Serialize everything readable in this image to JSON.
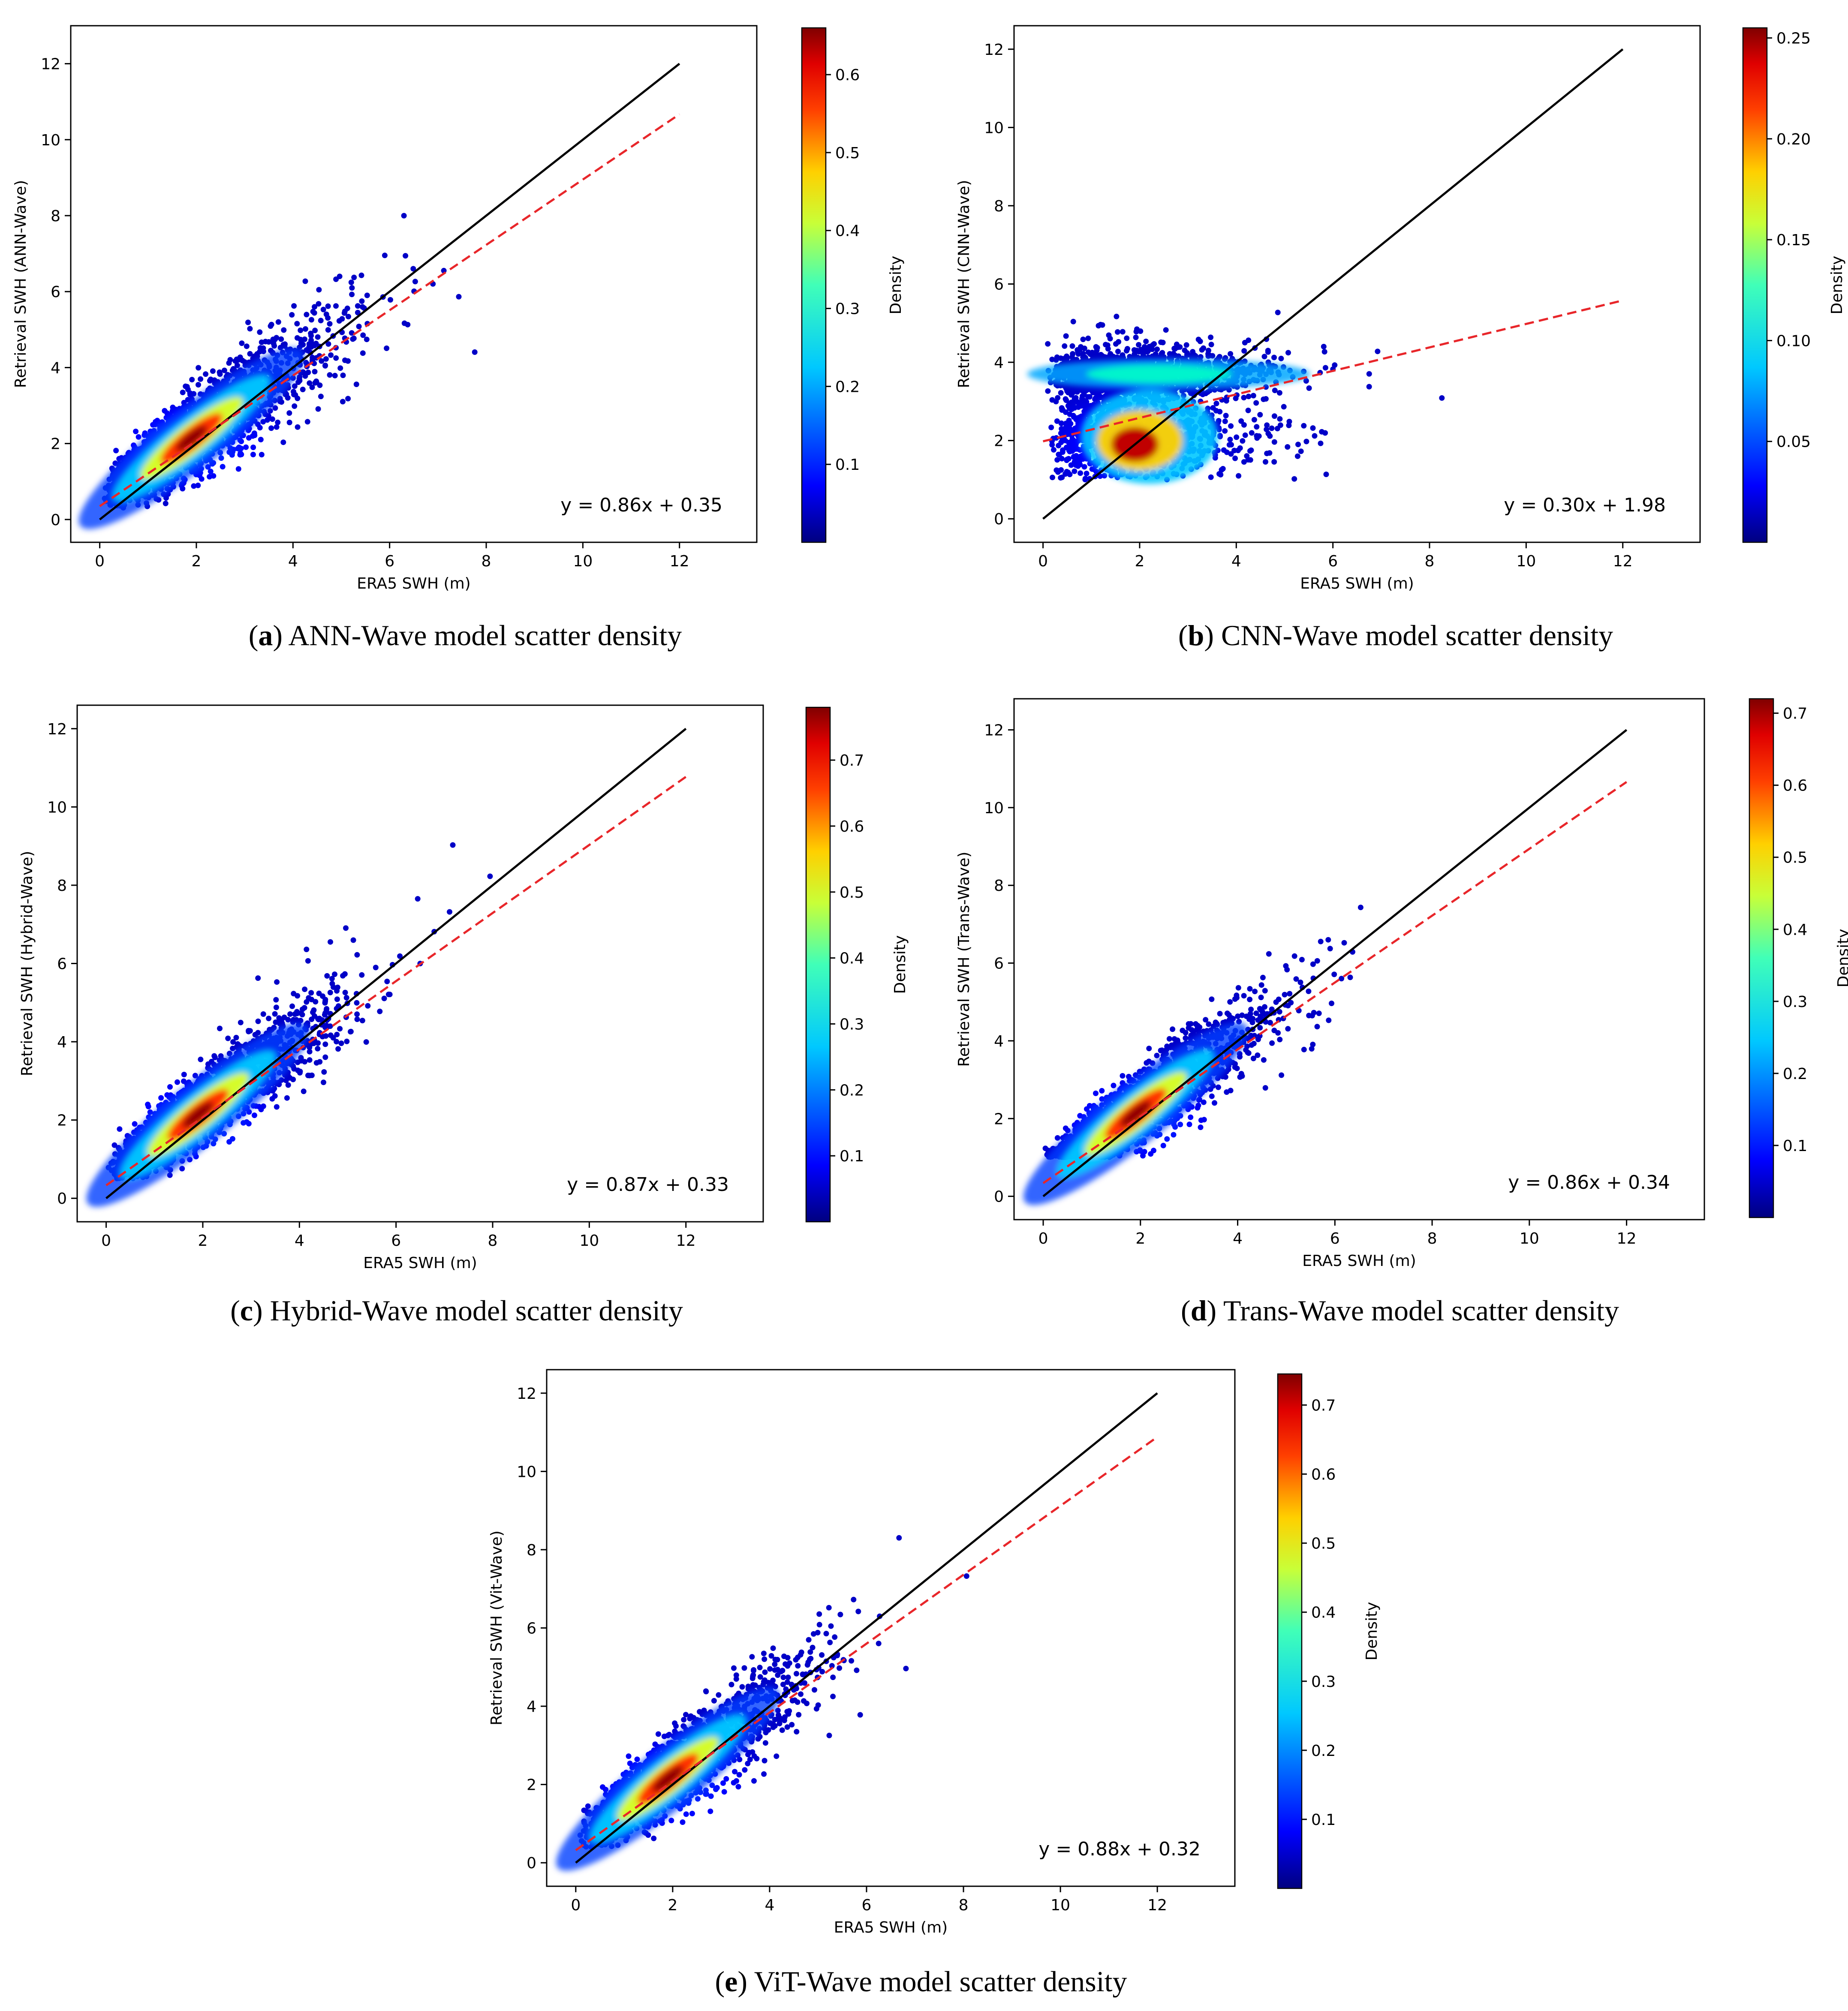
{
  "figure": {
    "panels": [
      {
        "id": "a",
        "caption_letter": "a",
        "caption_text": "ANN-Wave model scatter density",
        "equation": "y = 0.86x + 0.35",
        "slope": 0.86,
        "intercept": 0.35,
        "xlabel": "ERA5 SWH (m)",
        "ylabel": "Retrieval SWH (ANN-Wave)",
        "colorbar_label": "Density",
        "colorbar_range": [
          0.0,
          0.66
        ],
        "colorbar_ticks": [
          "0.1",
          "0.2",
          "0.3",
          "0.4",
          "0.5",
          "0.6"
        ],
        "x_ticks": [
          "0",
          "2",
          "4",
          "6",
          "8",
          "10",
          "12"
        ],
        "y_ticks": [
          "0",
          "2",
          "4",
          "6",
          "8",
          "10",
          "12"
        ],
        "xlim": [
          -0.6,
          13.6
        ],
        "ylim": [
          -0.6,
          13.0
        ],
        "mode": "diag",
        "floor": 0.3,
        "spread": 0.62
      },
      {
        "id": "b",
        "caption_letter": "b",
        "caption_text": "CNN-Wave model scatter density",
        "equation": "y = 0.30x + 1.98",
        "slope": 0.3,
        "intercept": 1.98,
        "xlabel": "ERA5 SWH (m)",
        "ylabel": "Retrieval SWH (CNN-Wave)",
        "colorbar_label": "Density",
        "colorbar_range": [
          0.0,
          0.255
        ],
        "colorbar_ticks": [
          "0.05",
          "0.10",
          "0.15",
          "0.20",
          "0.25"
        ],
        "x_ticks": [
          "0",
          "2",
          "4",
          "6",
          "8",
          "10",
          "12"
        ],
        "y_ticks": [
          "0",
          "2",
          "4",
          "6",
          "8",
          "10",
          "12"
        ],
        "xlim": [
          -0.6,
          13.6
        ],
        "ylim": [
          -0.6,
          12.6
        ],
        "mode": "cnn",
        "floor": 1.0,
        "spread": 0.5
      },
      {
        "id": "c",
        "caption_letter": "c",
        "caption_text": "Hybrid-Wave model scatter density",
        "equation": "y = 0.87x + 0.33",
        "slope": 0.87,
        "intercept": 0.33,
        "xlabel": "ERA5 SWH (m)",
        "ylabel": "Retrieval SWH (Hybrid-Wave)",
        "colorbar_label": "Density",
        "colorbar_range": [
          0.0,
          0.78
        ],
        "colorbar_ticks": [
          "0.1",
          "0.2",
          "0.3",
          "0.4",
          "0.5",
          "0.6",
          "0.7"
        ],
        "x_ticks": [
          "0",
          "2",
          "4",
          "6",
          "8",
          "10",
          "12"
        ],
        "y_ticks": [
          "0",
          "2",
          "4",
          "6",
          "8",
          "10",
          "12"
        ],
        "xlim": [
          -0.6,
          13.6
        ],
        "ylim": [
          -0.6,
          12.6
        ],
        "mode": "diag",
        "floor": 0.5,
        "spread": 0.55
      },
      {
        "id": "d",
        "caption_letter": "d",
        "caption_text": "Trans-Wave model scatter density",
        "equation": "y = 0.86x + 0.34",
        "slope": 0.86,
        "intercept": 0.34,
        "xlabel": "ERA5 SWH (m)",
        "ylabel": "Retrieval SWH (Trans-Wave)",
        "colorbar_label": "Density",
        "colorbar_range": [
          0.0,
          0.72
        ],
        "colorbar_ticks": [
          "0.1",
          "0.2",
          "0.3",
          "0.4",
          "0.5",
          "0.6",
          "0.7"
        ],
        "x_ticks": [
          "0",
          "2",
          "4",
          "6",
          "8",
          "10",
          "12"
        ],
        "y_ticks": [
          "0",
          "2",
          "4",
          "6",
          "8",
          "10",
          "12"
        ],
        "xlim": [
          -0.6,
          13.6
        ],
        "ylim": [
          -0.6,
          12.8
        ],
        "mode": "diag",
        "floor": 1.0,
        "spread": 0.55
      },
      {
        "id": "e",
        "caption_letter": "e",
        "caption_text": "ViT-Wave model scatter density",
        "equation": "y = 0.88x + 0.32",
        "slope": 0.88,
        "intercept": 0.32,
        "xlabel": "ERA5 SWH (m)",
        "ylabel": "Retrieval SWH (Vit-Wave)",
        "colorbar_label": "Density",
        "colorbar_range": [
          0.0,
          0.745
        ],
        "colorbar_ticks": [
          "0.1",
          "0.2",
          "0.3",
          "0.4",
          "0.5",
          "0.6",
          "0.7"
        ],
        "x_ticks": [
          "0",
          "2",
          "4",
          "6",
          "8",
          "10",
          "12"
        ],
        "y_ticks": [
          "0",
          "2",
          "4",
          "6",
          "8",
          "10",
          "12"
        ],
        "xlim": [
          -0.6,
          13.6
        ],
        "ylim": [
          -0.6,
          12.6
        ],
        "mode": "diag",
        "floor": 0.4,
        "spread": 0.55
      }
    ]
  },
  "chart_data": [
    {
      "type": "scatter",
      "title": "(a) ANN-Wave model scatter density",
      "xlabel": "ERA5 SWH (m)",
      "ylabel": "Retrieval SWH (ANN-Wave)",
      "xlim": [
        -0.6,
        13.6
      ],
      "ylim": [
        -0.6,
        13.0
      ],
      "series": [
        {
          "name": "1:1 line",
          "x": [
            0,
            12
          ],
          "y": [
            0,
            12
          ],
          "color": "#000000"
        },
        {
          "name": "fit y = 0.86x + 0.35",
          "x": [
            0,
            12
          ],
          "y": [
            0.35,
            10.67
          ],
          "color": "#e8262a"
        }
      ],
      "colorbar": {
        "label": "Density",
        "range": [
          0,
          0.66
        ]
      },
      "annotation": "y = 0.86x + 0.35"
    },
    {
      "type": "scatter",
      "title": "(b) CNN-Wave model scatter density",
      "xlabel": "ERA5 SWH (m)",
      "ylabel": "Retrieval SWH (CNN-Wave)",
      "xlim": [
        -0.6,
        13.6
      ],
      "ylim": [
        -0.6,
        12.6
      ],
      "series": [
        {
          "name": "1:1 line",
          "x": [
            0,
            12
          ],
          "y": [
            0,
            12
          ],
          "color": "#000000"
        },
        {
          "name": "fit y = 0.30x + 1.98",
          "x": [
            0,
            12
          ],
          "y": [
            1.98,
            5.58
          ],
          "color": "#e8262a"
        }
      ],
      "colorbar": {
        "label": "Density",
        "range": [
          0,
          0.255
        ]
      },
      "annotation": "y = 0.30x + 1.98"
    },
    {
      "type": "scatter",
      "title": "(c) Hybrid-Wave model scatter density",
      "xlabel": "ERA5 SWH (m)",
      "ylabel": "Retrieval SWH (Hybrid-Wave)",
      "xlim": [
        -0.6,
        13.6
      ],
      "ylim": [
        -0.6,
        12.6
      ],
      "series": [
        {
          "name": "1:1 line",
          "x": [
            0,
            12
          ],
          "y": [
            0,
            12
          ],
          "color": "#000000"
        },
        {
          "name": "fit y = 0.87x + 0.33",
          "x": [
            0,
            12
          ],
          "y": [
            0.33,
            10.77
          ],
          "color": "#e8262a"
        }
      ],
      "colorbar": {
        "label": "Density",
        "range": [
          0,
          0.78
        ]
      },
      "annotation": "y = 0.87x + 0.33"
    },
    {
      "type": "scatter",
      "title": "(d) Trans-Wave model scatter density",
      "xlabel": "ERA5 SWH (m)",
      "ylabel": "Retrieval SWH (Trans-Wave)",
      "xlim": [
        -0.6,
        13.6
      ],
      "ylim": [
        -0.6,
        12.8
      ],
      "series": [
        {
          "name": "1:1 line",
          "x": [
            0,
            12
          ],
          "y": [
            0,
            12
          ],
          "color": "#000000"
        },
        {
          "name": "fit y = 0.86x + 0.34",
          "x": [
            0,
            12
          ],
          "y": [
            0.34,
            10.66
          ],
          "color": "#e8262a"
        }
      ],
      "colorbar": {
        "label": "Density",
        "range": [
          0,
          0.72
        ]
      },
      "annotation": "y = 0.86x + 0.34"
    },
    {
      "type": "scatter",
      "title": "(e) ViT-Wave model scatter density",
      "xlabel": "ERA5 SWH (m)",
      "ylabel": "Retrieval SWH (Vit-Wave)",
      "xlim": [
        -0.6,
        13.6
      ],
      "ylim": [
        -0.6,
        12.6
      ],
      "series": [
        {
          "name": "1:1 line",
          "x": [
            0,
            12
          ],
          "y": [
            0,
            12
          ],
          "color": "#000000"
        },
        {
          "name": "fit y = 0.88x + 0.32",
          "x": [
            0,
            12
          ],
          "y": [
            0.32,
            10.88
          ],
          "color": "#e8262a"
        }
      ],
      "colorbar": {
        "label": "Density",
        "range": [
          0,
          0.745
        ]
      },
      "annotation": "y = 0.88x + 0.32"
    }
  ],
  "colors": {
    "identity_line": "#000000",
    "fit_line": "#e8262a",
    "jet_stops": [
      "#000080",
      "#0000ff",
      "#0080ff",
      "#00ffff",
      "#80ff80",
      "#ffff00",
      "#ff8000",
      "#ff0000",
      "#800000"
    ]
  }
}
